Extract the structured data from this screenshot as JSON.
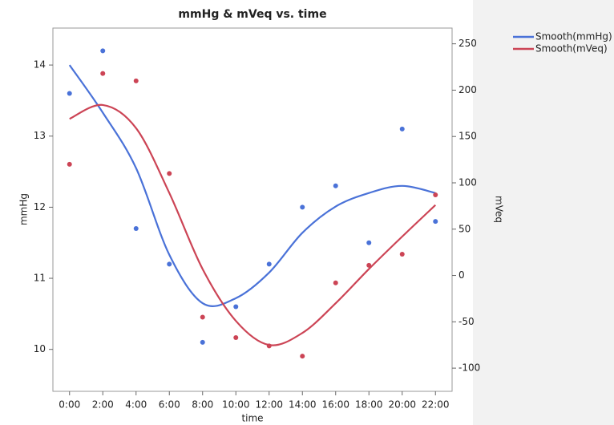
{
  "chart_data": {
    "type": "line",
    "title": "mmHg & mVeq vs. time",
    "x_label": "time",
    "y_label": "mmHg",
    "y2_label": "mVeq",
    "categories": [
      "0:00",
      "2:00",
      "4:00",
      "6:00",
      "8:00",
      "10:00",
      "12:00",
      "14:00",
      "16:00",
      "18:00",
      "20:00",
      "22:00"
    ],
    "ylim": [
      9.41,
      14.52
    ],
    "yticks": [
      10,
      11,
      12,
      13,
      14
    ],
    "y2lim": [
      -125,
      267
    ],
    "y2ticks": [
      -100,
      -50,
      0,
      50,
      100,
      150,
      200,
      250
    ],
    "series": [
      {
        "name": "Smooth(mmHg)",
        "color": "#4a72d8",
        "axis": "y",
        "values": [
          14.0,
          13.33,
          12.55,
          11.33,
          10.65,
          10.72,
          11.08,
          11.64,
          12.01,
          12.2,
          12.3,
          12.2
        ],
        "points": [
          13.6,
          14.2,
          11.7,
          11.2,
          10.1,
          10.6,
          11.2,
          12.0,
          12.3,
          11.5,
          13.1,
          11.8
        ]
      },
      {
        "name": "Smooth(mVeq)",
        "color": "#cc4455",
        "axis": "y2",
        "values": [
          169,
          184,
          159,
          89,
          7,
          -49,
          -75,
          -62,
          -30,
          7,
          42,
          76
        ],
        "points": [
          120,
          218,
          210,
          110,
          -45,
          -67,
          -76,
          -87,
          -8,
          11,
          23,
          87
        ]
      }
    ]
  }
}
